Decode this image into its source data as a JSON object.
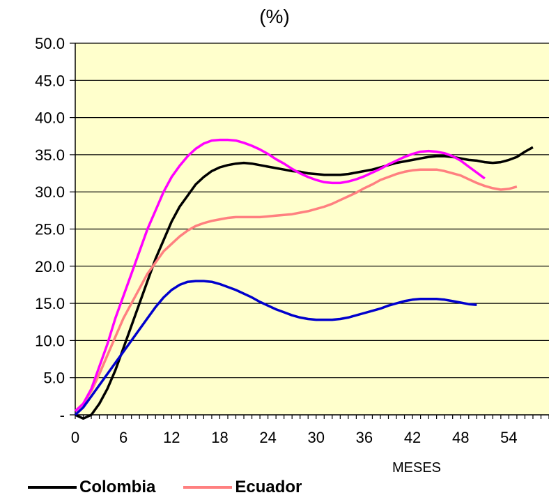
{
  "chart_data": {
    "type": "line",
    "title": "(%)",
    "xlabel": "MESES",
    "ylabel": "",
    "xlim": [
      0,
      59
    ],
    "ylim": [
      0,
      50
    ],
    "x_ticks": [
      "0",
      "6",
      "12",
      "18",
      "24",
      "30",
      "36",
      "42",
      "48",
      "54"
    ],
    "y_ticks": [
      "-",
      "5.0",
      "10.0",
      "15.0",
      "20.0",
      "25.0",
      "30.0",
      "35.0",
      "40.0",
      "45.0",
      "50.0"
    ],
    "grid": true,
    "plot_background": "#FFFFCC",
    "series": [
      {
        "name": "Colombia",
        "color": "#000000",
        "points": [
          [
            0,
            0
          ],
          [
            1,
            -0.5
          ],
          [
            2,
            0
          ],
          [
            3,
            1.5
          ],
          [
            4,
            3.5
          ],
          [
            5,
            6
          ],
          [
            6,
            9
          ],
          [
            7,
            12
          ],
          [
            8,
            15
          ],
          [
            9,
            18
          ],
          [
            10,
            21
          ],
          [
            11,
            23.5
          ],
          [
            12,
            26
          ],
          [
            13,
            28
          ],
          [
            14,
            29.5
          ],
          [
            15,
            31
          ],
          [
            16,
            32
          ],
          [
            17,
            32.8
          ],
          [
            18,
            33.3
          ],
          [
            19,
            33.6
          ],
          [
            20,
            33.8
          ],
          [
            21,
            33.9
          ],
          [
            22,
            33.8
          ],
          [
            23,
            33.6
          ],
          [
            24,
            33.4
          ],
          [
            25,
            33.2
          ],
          [
            26,
            33
          ],
          [
            27,
            32.8
          ],
          [
            28,
            32.7
          ],
          [
            29,
            32.5
          ],
          [
            30,
            32.4
          ],
          [
            31,
            32.3
          ],
          [
            32,
            32.3
          ],
          [
            33,
            32.3
          ],
          [
            34,
            32.4
          ],
          [
            35,
            32.6
          ],
          [
            36,
            32.8
          ],
          [
            37,
            33
          ],
          [
            38,
            33.3
          ],
          [
            39,
            33.6
          ],
          [
            40,
            33.9
          ],
          [
            41,
            34.1
          ],
          [
            42,
            34.3
          ],
          [
            43,
            34.5
          ],
          [
            44,
            34.7
          ],
          [
            45,
            34.8
          ],
          [
            46,
            34.8
          ],
          [
            47,
            34.7
          ],
          [
            48,
            34.5
          ],
          [
            49,
            34.3
          ],
          [
            50,
            34.2
          ],
          [
            51,
            34
          ],
          [
            52,
            33.9
          ],
          [
            53,
            34
          ],
          [
            54,
            34.3
          ],
          [
            55,
            34.7
          ],
          [
            56,
            35.4
          ],
          [
            57,
            36
          ]
        ]
      },
      {
        "name": "Ecuador",
        "color": "#FF8080",
        "points": [
          [
            0,
            0.5
          ],
          [
            1,
            1.5
          ],
          [
            2,
            3.2
          ],
          [
            3,
            5.5
          ],
          [
            4,
            8
          ],
          [
            5,
            10.5
          ],
          [
            6,
            13
          ],
          [
            7,
            15
          ],
          [
            8,
            17
          ],
          [
            9,
            19
          ],
          [
            10,
            20.5
          ],
          [
            11,
            22
          ],
          [
            12,
            23
          ],
          [
            13,
            24
          ],
          [
            14,
            24.8
          ],
          [
            15,
            25.4
          ],
          [
            16,
            25.8
          ],
          [
            17,
            26.1
          ],
          [
            18,
            26.3
          ],
          [
            19,
            26.5
          ],
          [
            20,
            26.6
          ],
          [
            21,
            26.6
          ],
          [
            22,
            26.6
          ],
          [
            23,
            26.6
          ],
          [
            24,
            26.7
          ],
          [
            25,
            26.8
          ],
          [
            26,
            26.9
          ],
          [
            27,
            27
          ],
          [
            28,
            27.2
          ],
          [
            29,
            27.4
          ],
          [
            30,
            27.7
          ],
          [
            31,
            28
          ],
          [
            32,
            28.4
          ],
          [
            33,
            28.9
          ],
          [
            34,
            29.4
          ],
          [
            35,
            29.9
          ],
          [
            36,
            30.5
          ],
          [
            37,
            31
          ],
          [
            38,
            31.6
          ],
          [
            39,
            32
          ],
          [
            40,
            32.4
          ],
          [
            41,
            32.7
          ],
          [
            42,
            32.9
          ],
          [
            43,
            33
          ],
          [
            44,
            33
          ],
          [
            45,
            33
          ],
          [
            46,
            32.8
          ],
          [
            47,
            32.5
          ],
          [
            48,
            32.2
          ],
          [
            49,
            31.7
          ],
          [
            50,
            31.2
          ],
          [
            51,
            30.8
          ],
          [
            52,
            30.5
          ],
          [
            53,
            30.3
          ],
          [
            54,
            30.4
          ],
          [
            55,
            30.7
          ]
        ]
      },
      {
        "color": "#FF00FF",
        "points": [
          [
            0,
            0.5
          ],
          [
            1,
            1.5
          ],
          [
            2,
            3.5
          ],
          [
            3,
            6.5
          ],
          [
            4,
            9.5
          ],
          [
            5,
            13
          ],
          [
            6,
            16
          ],
          [
            7,
            19
          ],
          [
            8,
            22
          ],
          [
            9,
            25
          ],
          [
            10,
            27.5
          ],
          [
            11,
            30
          ],
          [
            12,
            32
          ],
          [
            13,
            33.5
          ],
          [
            14,
            34.8
          ],
          [
            15,
            35.8
          ],
          [
            16,
            36.5
          ],
          [
            17,
            36.9
          ],
          [
            18,
            37
          ],
          [
            19,
            37
          ],
          [
            20,
            36.9
          ],
          [
            21,
            36.6
          ],
          [
            22,
            36.2
          ],
          [
            23,
            35.7
          ],
          [
            24,
            35.1
          ],
          [
            25,
            34.4
          ],
          [
            26,
            33.8
          ],
          [
            27,
            33.1
          ],
          [
            28,
            32.5
          ],
          [
            29,
            32
          ],
          [
            30,
            31.6
          ],
          [
            31,
            31.3
          ],
          [
            32,
            31.2
          ],
          [
            33,
            31.2
          ],
          [
            34,
            31.4
          ],
          [
            35,
            31.7
          ],
          [
            36,
            32.1
          ],
          [
            37,
            32.6
          ],
          [
            38,
            33.1
          ],
          [
            39,
            33.7
          ],
          [
            40,
            34.2
          ],
          [
            41,
            34.7
          ],
          [
            42,
            35.1
          ],
          [
            43,
            35.4
          ],
          [
            44,
            35.5
          ],
          [
            45,
            35.4
          ],
          [
            46,
            35.2
          ],
          [
            47,
            34.8
          ],
          [
            48,
            34.2
          ],
          [
            49,
            33.4
          ],
          [
            50,
            32.6
          ],
          [
            51,
            31.8
          ]
        ]
      },
      {
        "color": "#0000CC",
        "points": [
          [
            0,
            0
          ],
          [
            1,
            1
          ],
          [
            2,
            2.5
          ],
          [
            3,
            4
          ],
          [
            4,
            5.5
          ],
          [
            5,
            7
          ],
          [
            6,
            8.5
          ],
          [
            7,
            10
          ],
          [
            8,
            11.5
          ],
          [
            9,
            13
          ],
          [
            10,
            14.5
          ],
          [
            11,
            15.8
          ],
          [
            12,
            16.8
          ],
          [
            13,
            17.5
          ],
          [
            14,
            17.9
          ],
          [
            15,
            18
          ],
          [
            16,
            18
          ],
          [
            17,
            17.9
          ],
          [
            18,
            17.6
          ],
          [
            19,
            17.2
          ],
          [
            20,
            16.8
          ],
          [
            21,
            16.3
          ],
          [
            22,
            15.8
          ],
          [
            23,
            15.2
          ],
          [
            24,
            14.7
          ],
          [
            25,
            14.2
          ],
          [
            26,
            13.8
          ],
          [
            27,
            13.4
          ],
          [
            28,
            13.1
          ],
          [
            29,
            12.9
          ],
          [
            30,
            12.8
          ],
          [
            31,
            12.8
          ],
          [
            32,
            12.8
          ],
          [
            33,
            12.9
          ],
          [
            34,
            13.1
          ],
          [
            35,
            13.4
          ],
          [
            36,
            13.7
          ],
          [
            37,
            14
          ],
          [
            38,
            14.3
          ],
          [
            39,
            14.7
          ],
          [
            40,
            15
          ],
          [
            41,
            15.3
          ],
          [
            42,
            15.5
          ],
          [
            43,
            15.6
          ],
          [
            44,
            15.6
          ],
          [
            45,
            15.6
          ],
          [
            46,
            15.5
          ],
          [
            47,
            15.3
          ],
          [
            48,
            15.1
          ],
          [
            49,
            14.9
          ],
          [
            50,
            14.8
          ]
        ]
      }
    ],
    "legend": {
      "position": "bottom",
      "entries": [
        "Colombia",
        "Ecuador"
      ]
    }
  }
}
